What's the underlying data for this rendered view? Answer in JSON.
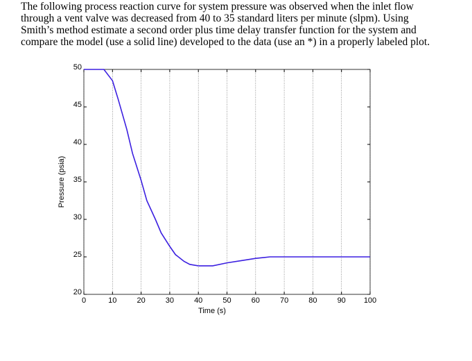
{
  "problem": {
    "lines": [
      "The following process reaction curve for system pressure was observed when the inlet flow",
      "through a vent valve was decreased from 40 to 35 standard liters per minute (slpm). Using",
      "Smith’s method estimate a second order plus time delay transfer function for the system and",
      "compare the model (use a solid line) developed to the data (use an *) in a properly labeled plot."
    ]
  },
  "chart_data": {
    "type": "line",
    "x_label": "Time (s)",
    "y_label": "Pressure (psia)",
    "x": [
      0,
      5,
      7,
      10,
      12,
      15,
      17,
      20,
      22,
      25,
      27,
      30,
      32,
      35,
      37,
      40,
      45,
      50,
      55,
      60,
      65,
      70,
      80,
      90,
      100
    ],
    "series": [
      {
        "color": "#3b1fe0",
        "values": [
          50,
          50,
          50,
          48.5,
          46,
          42,
          38.8,
          35.2,
          32.5,
          30,
          28.2,
          26.4,
          25.3,
          24.4,
          24,
          23.8,
          23.8,
          24.2,
          24.5,
          24.8,
          25,
          25,
          25,
          25,
          25
        ]
      }
    ],
    "xlim": [
      0,
      100
    ],
    "xticks": [
      0,
      10,
      20,
      30,
      40,
      50,
      60,
      70,
      80,
      90,
      100
    ],
    "ylim": [
      20,
      50
    ],
    "yticks": [
      20,
      25,
      30,
      35,
      40,
      45,
      50
    ],
    "xgrid": true
  }
}
